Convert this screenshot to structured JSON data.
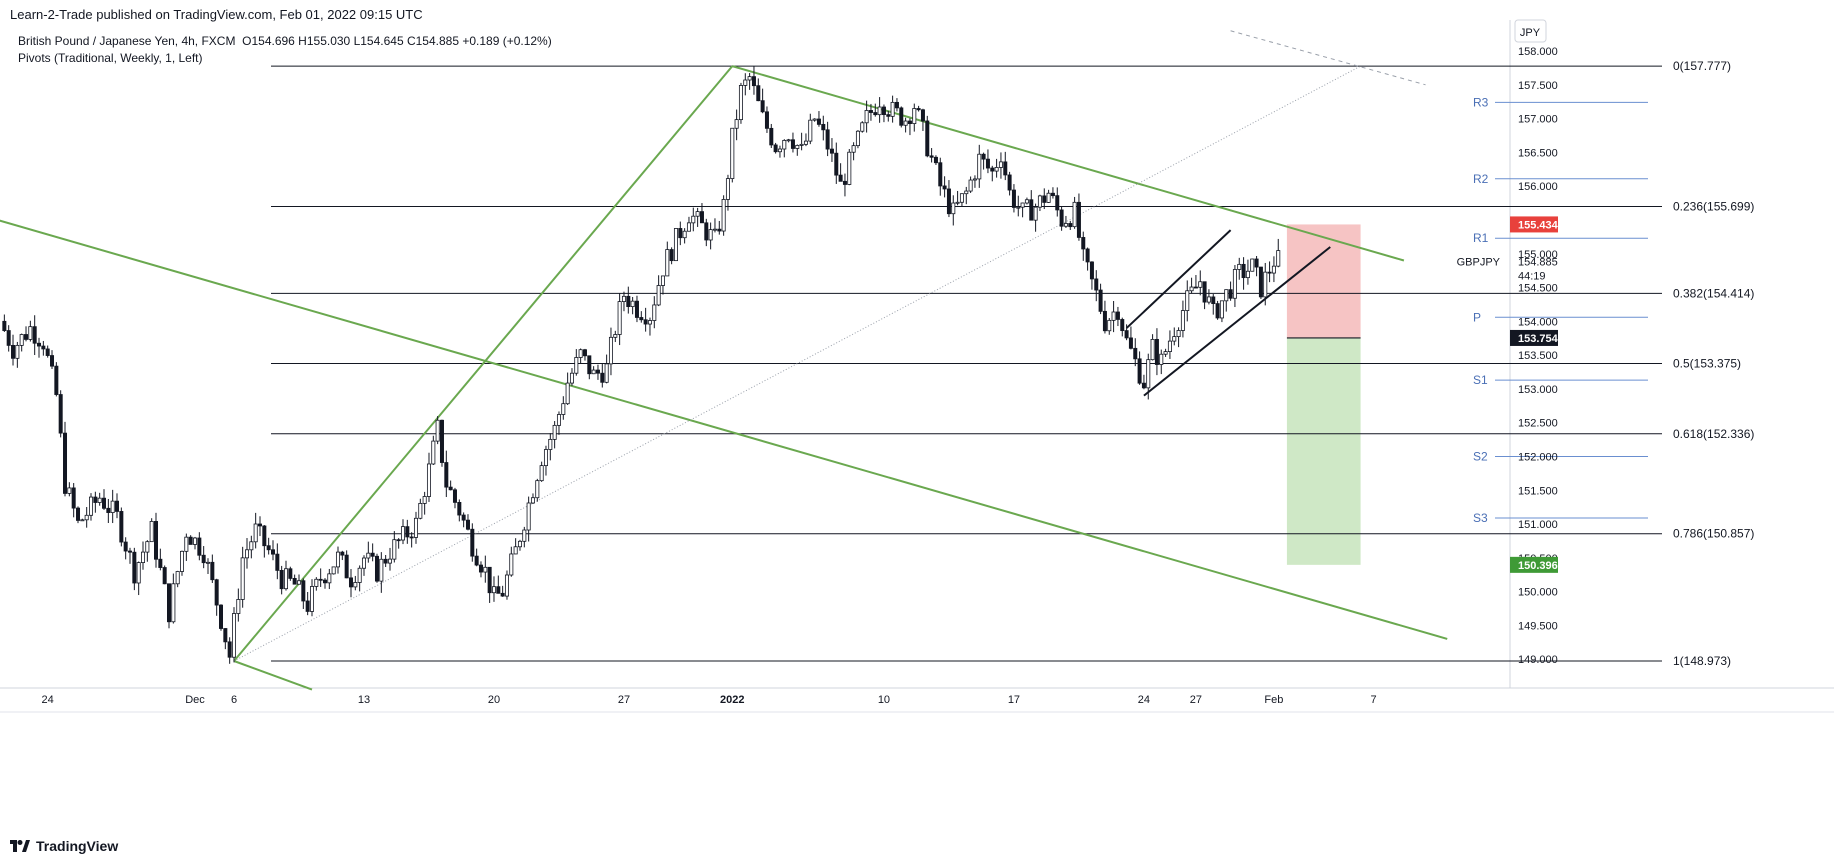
{
  "publish_line": "Learn-2-Trade published on TradingView.com, Feb 01, 2022 09:15 UTC",
  "legend": {
    "symbol": "British Pound / Japanese Yen, 4h, FXCM",
    "ohlc": "O154.696  H155.030  L154.645  C154.885  +0.189 (+0.12%)",
    "indicator": "Pivots (Traditional, Weekly, 1, Left)"
  },
  "footer": {
    "brand": "TradingView"
  },
  "colors": {
    "bull": "#ffffff",
    "bear": "#131722",
    "wick": "#131722",
    "trend": "#6aa84f",
    "fib": "#131722",
    "pivot": "#6a8fd0",
    "pivot_text": "#4a6fb5",
    "stop_zone": "#f6c4c4",
    "target_zone": "#cfe8c6",
    "red_tag": "#e8413c",
    "black_tag": "#131722",
    "green_tag": "#3f9a36"
  },
  "chart_data": {
    "type": "candlestick",
    "currency": "JPY",
    "symbol_label": "GBPJPY",
    "timer": "44:19",
    "ylim": [
      148.55,
      158.35
    ],
    "y_ticks": [
      "158.000",
      "157.500",
      "157.000",
      "156.500",
      "156.000",
      "155.500",
      "155.000",
      "154.500",
      "154.000",
      "153.500",
      "153.000",
      "152.500",
      "152.000",
      "151.500",
      "151.000",
      "150.500",
      "150.000",
      "149.500",
      "149.000"
    ],
    "x_ticks": [
      {
        "label": "24",
        "bar": -43
      },
      {
        "label": "Dec",
        "bar": -9
      },
      {
        "label": "6",
        "bar": 0
      },
      {
        "label": "13",
        "bar": 30
      },
      {
        "label": "20",
        "bar": 60
      },
      {
        "label": "27",
        "bar": 90
      },
      {
        "label": "2022",
        "bar": 115
      },
      {
        "label": "10",
        "bar": 150
      },
      {
        "label": "17",
        "bar": 180
      },
      {
        "label": "24",
        "bar": 210
      },
      {
        "label": "27",
        "bar": 222
      },
      {
        "label": "Feb",
        "bar": 240
      },
      {
        "label": "7",
        "bar": 263
      }
    ],
    "keypoints": [
      [
        -53,
        154.0
      ],
      [
        -50,
        153.6
      ],
      [
        -46,
        153.9
      ],
      [
        -43,
        153.7
      ],
      [
        -40,
        152.9
      ],
      [
        -38,
        151.6
      ],
      [
        -35,
        151.0
      ],
      [
        -30,
        151.4
      ],
      [
        -26,
        151.1
      ],
      [
        -22,
        150.3
      ],
      [
        -18,
        150.9
      ],
      [
        -14,
        149.7
      ],
      [
        -10,
        150.9
      ],
      [
        -6,
        150.6
      ],
      [
        -2,
        149.6
      ],
      [
        0,
        149.05
      ],
      [
        3,
        150.5
      ],
      [
        6,
        150.9
      ],
      [
        9,
        150.6
      ],
      [
        12,
        150.2
      ],
      [
        15,
        150.1
      ],
      [
        18,
        149.8
      ],
      [
        21,
        150.2
      ],
      [
        25,
        150.5
      ],
      [
        28,
        150.2
      ],
      [
        31,
        150.5
      ],
      [
        34,
        150.3
      ],
      [
        37,
        150.6
      ],
      [
        40,
        150.8
      ],
      [
        43,
        151.0
      ],
      [
        46,
        151.8
      ],
      [
        48,
        152.4
      ],
      [
        50,
        151.6
      ],
      [
        53,
        151.2
      ],
      [
        56,
        150.7
      ],
      [
        59,
        150.3
      ],
      [
        61,
        149.9
      ],
      [
        63,
        150.0
      ],
      [
        66,
        150.6
      ],
      [
        69,
        151.3
      ],
      [
        72,
        152.0
      ],
      [
        75,
        152.4
      ],
      [
        78,
        153.1
      ],
      [
        81,
        153.5
      ],
      [
        84,
        153.2
      ],
      [
        87,
        153.3
      ],
      [
        89,
        153.9
      ],
      [
        91,
        154.4
      ],
      [
        94,
        154.2
      ],
      [
        97,
        154.1
      ],
      [
        100,
        154.8
      ],
      [
        103,
        155.2
      ],
      [
        106,
        155.6
      ],
      [
        109,
        155.4
      ],
      [
        112,
        155.2
      ],
      [
        114,
        155.7
      ],
      [
        116,
        156.7
      ],
      [
        118,
        157.4
      ],
      [
        120,
        157.6
      ],
      [
        123,
        157.0
      ],
      [
        126,
        156.6
      ],
      [
        129,
        156.8
      ],
      [
        132,
        156.5
      ],
      [
        135,
        157.0
      ],
      [
        138,
        156.6
      ],
      [
        141,
        156.0
      ],
      [
        144,
        156.5
      ],
      [
        147,
        157.0
      ],
      [
        150,
        157.3
      ],
      [
        153,
        157.1
      ],
      [
        156,
        157.0
      ],
      [
        158,
        157.2
      ],
      [
        161,
        156.6
      ],
      [
        164,
        156.0
      ],
      [
        167,
        155.6
      ],
      [
        170,
        155.9
      ],
      [
        173,
        156.4
      ],
      [
        176,
        156.2
      ],
      [
        178,
        156.5
      ],
      [
        180,
        155.9
      ],
      [
        183,
        155.6
      ],
      [
        186,
        155.7
      ],
      [
        189,
        155.9
      ],
      [
        192,
        155.5
      ],
      [
        195,
        155.6
      ],
      [
        197,
        154.9
      ],
      [
        200,
        154.4
      ],
      [
        202,
        154.0
      ],
      [
        205,
        154.2
      ],
      [
        207,
        153.7
      ],
      [
        209,
        153.4
      ],
      [
        211,
        153.1
      ],
      [
        213,
        153.6
      ],
      [
        215,
        153.4
      ],
      [
        218,
        153.9
      ],
      [
        221,
        154.3
      ],
      [
        224,
        154.6
      ],
      [
        227,
        154.1
      ],
      [
        230,
        154.4
      ],
      [
        233,
        154.7
      ],
      [
        236,
        154.8
      ],
      [
        238,
        154.5
      ],
      [
        241,
        154.9
      ]
    ],
    "fibonacci": [
      {
        "label": "0(157.777)",
        "value": 157.777
      },
      {
        "label": "0.236(155.699)",
        "value": 155.699
      },
      {
        "label": "0.382(154.414)",
        "value": 154.414
      },
      {
        "label": "0.5(153.375)",
        "value": 153.375
      },
      {
        "label": "0.618(152.336)",
        "value": 152.336
      },
      {
        "label": "0.786(150.857)",
        "value": 150.857
      },
      {
        "label": "1(148.973)",
        "value": 148.973
      }
    ],
    "pivots": [
      {
        "label": "R3",
        "value": 157.24
      },
      {
        "label": "R2",
        "value": 156.11
      },
      {
        "label": "R1",
        "value": 155.23
      },
      {
        "label": "P",
        "value": 154.06
      },
      {
        "label": "S1",
        "value": 153.13
      },
      {
        "label": "S2",
        "value": 152.0
      },
      {
        "label": "S3",
        "value": 151.09
      }
    ],
    "trendlines": [
      {
        "from": [
          0,
          148.973
        ],
        "to": [
          115,
          157.777
        ]
      },
      {
        "from": [
          115,
          157.777
        ],
        "to": [
          270,
          154.9
        ]
      },
      {
        "from": [
          -60,
          155.6
        ],
        "to": [
          280,
          149.3
        ]
      },
      {
        "from": [
          0,
          148.973
        ],
        "to": [
          18,
          148.55
        ]
      }
    ],
    "channel": [
      {
        "from": [
          206,
          153.9
        ],
        "to": [
          230,
          155.35
        ]
      },
      {
        "from": [
          210,
          152.9
        ],
        "to": [
          253,
          155.1
        ]
      }
    ],
    "fib_extension_line": {
      "from": [
        0,
        148.973
      ],
      "to": [
        260,
        157.777
      ]
    },
    "dashed_line": {
      "from": [
        230,
        158.3
      ],
      "to": [
        275,
        157.5
      ]
    },
    "position": {
      "entry": 153.754,
      "stop": 155.434,
      "target": 150.396,
      "start_bar": 243,
      "end_bar": 260
    },
    "price_tags": [
      {
        "label": "155.434",
        "value": 155.434,
        "style": "red"
      },
      {
        "label": "154.885",
        "value": 154.885,
        "style": "plain"
      },
      {
        "label": "153.754",
        "value": 153.754,
        "style": "black"
      },
      {
        "label": "150.396",
        "value": 150.396,
        "style": "green"
      }
    ]
  }
}
